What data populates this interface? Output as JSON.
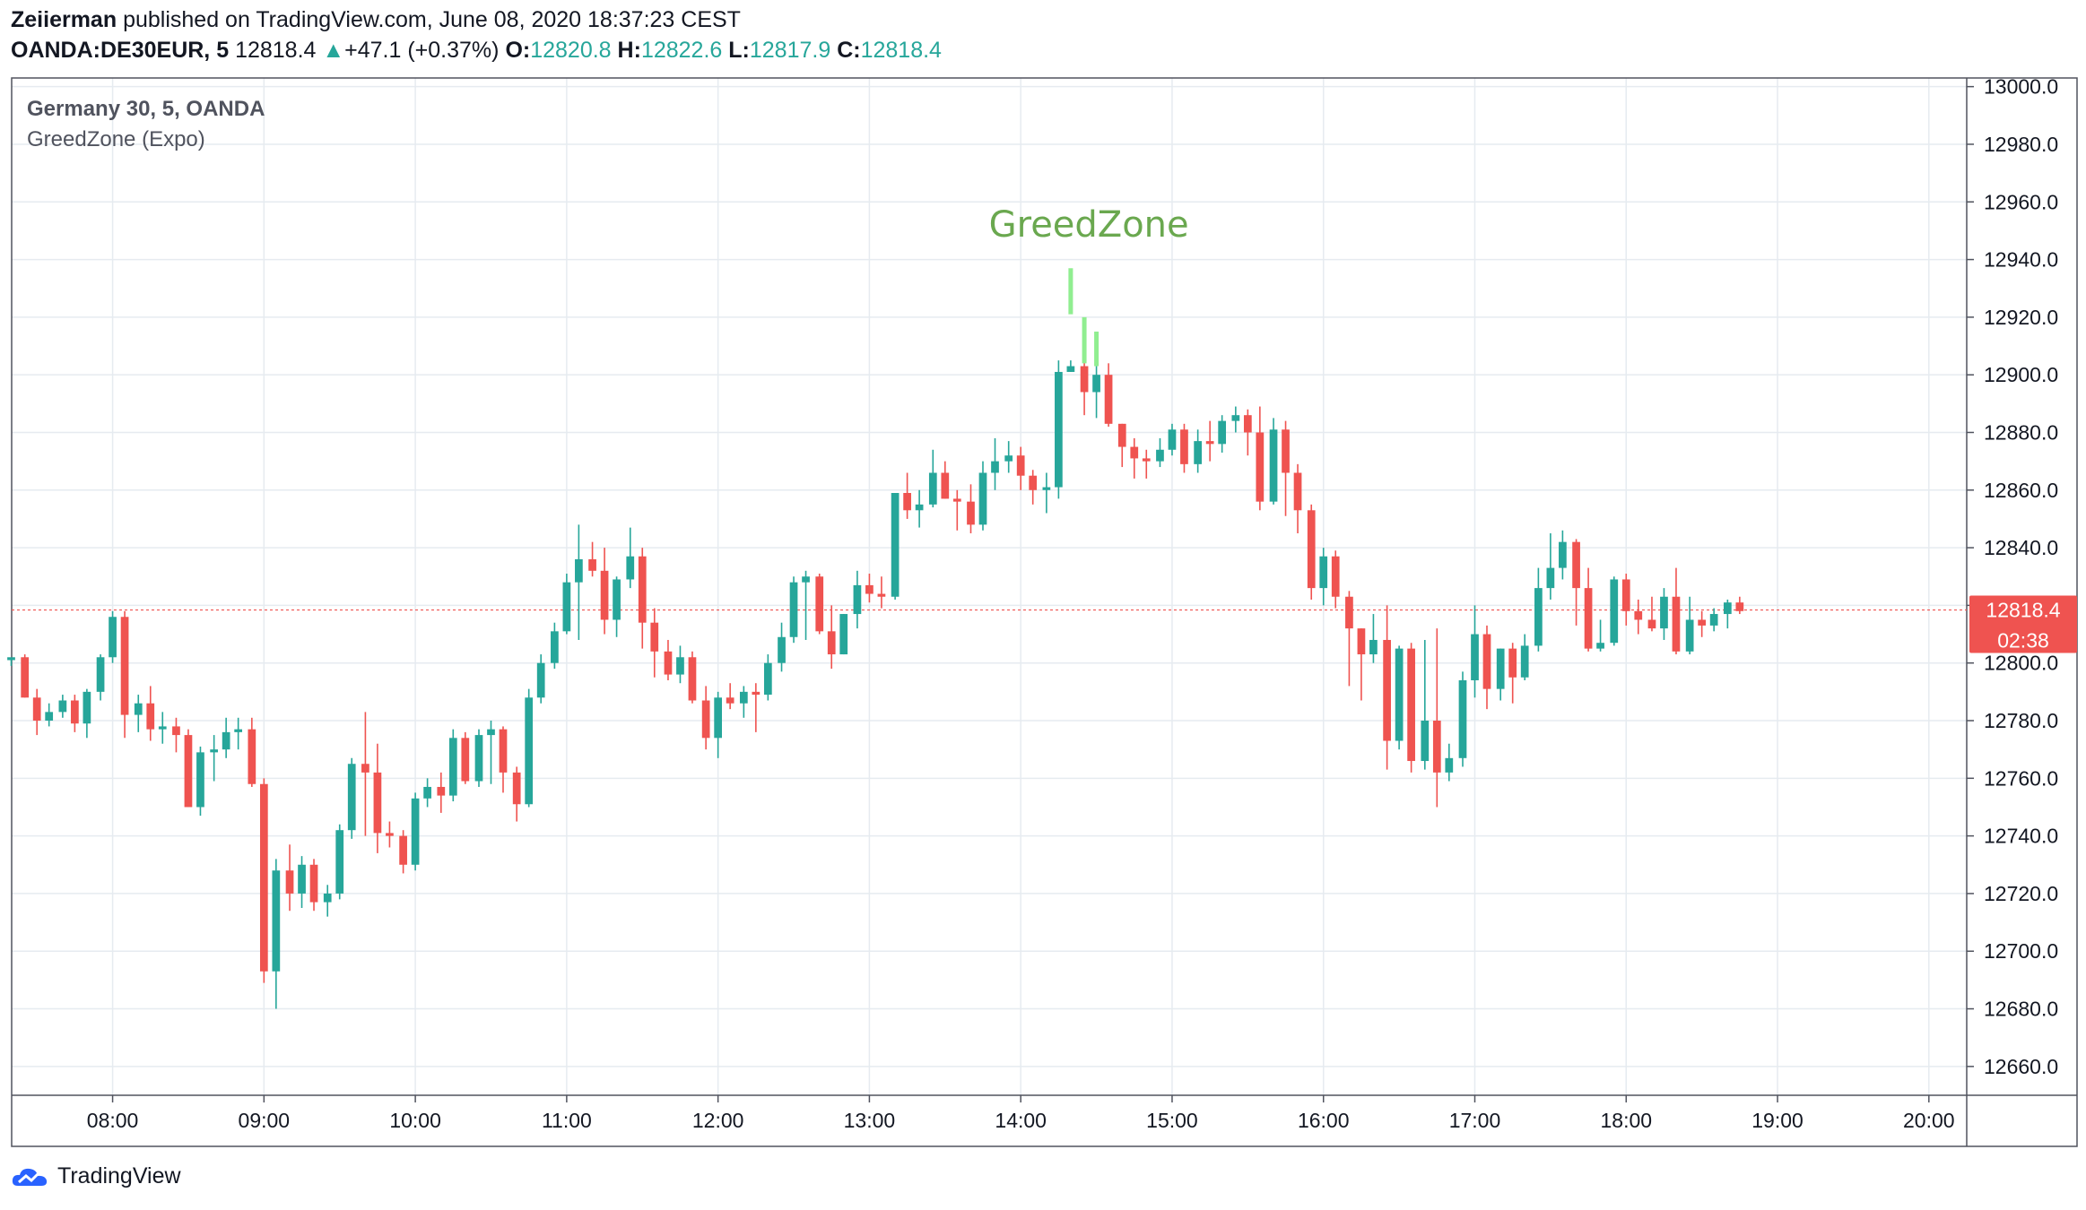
{
  "header": {
    "author": "Zeiierman",
    "published_text": "published on TradingView.com, June 08, 2020 18:37:23 CEST",
    "symbol": "OANDA:DE30EUR, 5",
    "last": "12818.4",
    "change": "+47.1 (+0.37%)",
    "o_label": "O:",
    "o_value": "12820.8",
    "h_label": "H:",
    "h_value": "12822.6",
    "l_label": "L:",
    "l_value": "12817.9",
    "c_label": "C:",
    "c_value": "12818.4"
  },
  "legend": {
    "title": "Germany 30, 5, OANDA",
    "indicator": "GreedZone (Expo)"
  },
  "annotation": {
    "text": "GreedZone",
    "color": "#6aa84f"
  },
  "price_label": {
    "value": "12818.4",
    "countdown": "02:38"
  },
  "footer": {
    "brand": "TradingView"
  },
  "colors": {
    "up": "#26a69a",
    "down": "#ef5350",
    "greed": "#90ee90",
    "grid": "#e6ebf0"
  },
  "chart_data": {
    "type": "candlestick",
    "ylim": [
      12650,
      13003
    ],
    "y_ticks": [
      12660,
      12680,
      12700,
      12720,
      12740,
      12760,
      12780,
      12800,
      12820,
      12840,
      12860,
      12880,
      12900,
      12920,
      12940,
      12960,
      12980,
      13000
    ],
    "x_ticks": [
      "08:00",
      "09:00",
      "10:00",
      "11:00",
      "12:00",
      "13:00",
      "14:00",
      "15:00",
      "16:00",
      "17:00",
      "18:00",
      "19:00",
      "20:00"
    ],
    "x_range_hours": [
      7.333,
      20.25
    ],
    "last_price": 12818.4,
    "candles": [
      [
        7.33,
        12801,
        12801,
        12799,
        12802
      ],
      [
        7.42,
        12802,
        12803,
        12788,
        12788
      ],
      [
        7.5,
        12788,
        12791,
        12775,
        12780
      ],
      [
        7.58,
        12780,
        12786,
        12778,
        12783
      ],
      [
        7.67,
        12783,
        12789,
        12781,
        12787
      ],
      [
        7.75,
        12787,
        12789,
        12776,
        12779
      ],
      [
        7.83,
        12779,
        12791,
        12774,
        12790
      ],
      [
        7.92,
        12790,
        12803,
        12787,
        12802
      ],
      [
        8.0,
        12802,
        12818,
        12800,
        12816
      ],
      [
        8.08,
        12816,
        12818,
        12774,
        12782
      ],
      [
        8.17,
        12782,
        12789,
        12776,
        12786
      ],
      [
        8.25,
        12786,
        12792,
        12773,
        12777
      ],
      [
        8.33,
        12777,
        12783,
        12772,
        12778
      ],
      [
        8.42,
        12778,
        12781,
        12769,
        12775
      ],
      [
        8.5,
        12775,
        12777,
        12750,
        12750
      ],
      [
        8.58,
        12750,
        12771,
        12747,
        12769
      ],
      [
        8.67,
        12769,
        12775,
        12759,
        12770
      ],
      [
        8.75,
        12770,
        12781,
        12767,
        12776
      ],
      [
        8.83,
        12776,
        12781,
        12770,
        12777
      ],
      [
        8.92,
        12777,
        12781,
        12757,
        12758
      ],
      [
        9.0,
        12758,
        12760,
        12689,
        12693
      ],
      [
        9.08,
        12693,
        12732,
        12680,
        12728
      ],
      [
        9.17,
        12728,
        12737,
        12714,
        12720
      ],
      [
        9.25,
        12720,
        12733,
        12715,
        12730
      ],
      [
        9.33,
        12730,
        12732,
        12714,
        12717
      ],
      [
        9.42,
        12717,
        12723,
        12712,
        12720
      ],
      [
        9.5,
        12720,
        12744,
        12718,
        12742
      ],
      [
        9.58,
        12742,
        12767,
        12739,
        12765
      ],
      [
        9.67,
        12765,
        12783,
        12740,
        12762
      ],
      [
        9.75,
        12762,
        12772,
        12734,
        12741
      ],
      [
        9.83,
        12741,
        12745,
        12736,
        12740
      ],
      [
        9.92,
        12740,
        12742,
        12727,
        12730
      ],
      [
        10.0,
        12730,
        12755,
        12728,
        12753
      ],
      [
        10.08,
        12753,
        12760,
        12750,
        12757
      ],
      [
        10.17,
        12757,
        12762,
        12748,
        12754
      ],
      [
        10.25,
        12754,
        12777,
        12752,
        12774
      ],
      [
        10.33,
        12774,
        12776,
        12758,
        12759
      ],
      [
        10.42,
        12759,
        12777,
        12757,
        12775
      ],
      [
        10.5,
        12775,
        12780,
        12758,
        12777
      ],
      [
        10.58,
        12777,
        12778,
        12755,
        12762
      ],
      [
        10.67,
        12762,
        12764,
        12745,
        12751
      ],
      [
        10.75,
        12751,
        12791,
        12750,
        12788
      ],
      [
        10.83,
        12788,
        12803,
        12786,
        12800
      ],
      [
        10.92,
        12800,
        12814,
        12798,
        12811
      ],
      [
        11.0,
        12811,
        12831,
        12810,
        12828
      ],
      [
        11.08,
        12828,
        12848,
        12808,
        12836
      ],
      [
        11.17,
        12836,
        12842,
        12830,
        12832
      ],
      [
        11.25,
        12832,
        12840,
        12810,
        12815
      ],
      [
        11.33,
        12815,
        12830,
        12809,
        12829
      ],
      [
        11.42,
        12829,
        12847,
        12826,
        12837
      ],
      [
        11.5,
        12837,
        12840,
        12805,
        12814
      ],
      [
        11.58,
        12814,
        12819,
        12795,
        12804
      ],
      [
        11.67,
        12804,
        12808,
        12794,
        12796
      ],
      [
        11.75,
        12796,
        12806,
        12793,
        12802
      ],
      [
        11.83,
        12802,
        12804,
        12786,
        12787
      ],
      [
        11.92,
        12787,
        12792,
        12770,
        12774
      ],
      [
        12.0,
        12774,
        12790,
        12767,
        12788
      ],
      [
        12.08,
        12788,
        12793,
        12784,
        12786
      ],
      [
        12.17,
        12786,
        12792,
        12781,
        12790
      ],
      [
        12.25,
        12790,
        12793,
        12776,
        12789
      ],
      [
        12.33,
        12789,
        12803,
        12787,
        12800
      ],
      [
        12.42,
        12800,
        12814,
        12797,
        12809
      ],
      [
        12.5,
        12809,
        12830,
        12807,
        12828
      ],
      [
        12.58,
        12828,
        12832,
        12808,
        12830
      ],
      [
        12.67,
        12830,
        12831,
        12810,
        12811
      ],
      [
        12.75,
        12811,
        12820,
        12798,
        12803
      ],
      [
        12.83,
        12803,
        12817,
        12803,
        12817
      ],
      [
        12.92,
        12817,
        12832,
        12812,
        12827
      ],
      [
        13.0,
        12827,
        12831,
        12821,
        12824
      ],
      [
        13.08,
        12824,
        12830,
        12819,
        12823
      ],
      [
        13.17,
        12823,
        12858,
        12822,
        12859
      ],
      [
        13.25,
        12859,
        12866,
        12850,
        12853
      ],
      [
        13.33,
        12853,
        12860,
        12847,
        12855
      ],
      [
        13.42,
        12855,
        12874,
        12854,
        12866
      ],
      [
        13.5,
        12866,
        12870,
        12857,
        12857
      ],
      [
        13.58,
        12857,
        12860,
        12846,
        12856
      ],
      [
        13.67,
        12856,
        12862,
        12845,
        12848
      ],
      [
        13.75,
        12848,
        12870,
        12846,
        12866
      ],
      [
        13.83,
        12866,
        12878,
        12860,
        12870
      ],
      [
        13.92,
        12870,
        12877,
        12866,
        12872
      ],
      [
        14.0,
        12872,
        12875,
        12860,
        12865
      ],
      [
        14.08,
        12865,
        12867,
        12855,
        12860
      ],
      [
        14.17,
        12860,
        12866,
        12852,
        12861
      ],
      [
        14.25,
        12861,
        12905,
        12857,
        12901
      ],
      [
        14.33,
        12901,
        12905,
        12901,
        12903
      ],
      [
        14.42,
        12903,
        12905,
        12886,
        12894
      ],
      [
        14.5,
        12894,
        12903,
        12885,
        12900
      ],
      [
        14.58,
        12900,
        12904,
        12882,
        12883
      ],
      [
        14.67,
        12883,
        12883,
        12868,
        12875
      ],
      [
        14.75,
        12875,
        12878,
        12864,
        12871
      ],
      [
        14.83,
        12871,
        12874,
        12864,
        12870
      ],
      [
        14.92,
        12870,
        12878,
        12868,
        12874
      ],
      [
        15.0,
        12874,
        12883,
        12872,
        12881
      ],
      [
        15.08,
        12881,
        12883,
        12866,
        12869
      ],
      [
        15.17,
        12869,
        12881,
        12866,
        12877
      ],
      [
        15.25,
        12877,
        12884,
        12870,
        12876
      ],
      [
        15.33,
        12876,
        12886,
        12873,
        12884
      ],
      [
        15.42,
        12884,
        12889,
        12880,
        12886
      ],
      [
        15.5,
        12886,
        12888,
        12872,
        12880
      ],
      [
        15.58,
        12880,
        12889,
        12853,
        12856
      ],
      [
        15.67,
        12856,
        12885,
        12855,
        12881
      ],
      [
        15.75,
        12881,
        12884,
        12851,
        12866
      ],
      [
        15.83,
        12866,
        12869,
        12845,
        12853
      ],
      [
        15.92,
        12853,
        12855,
        12822,
        12826
      ],
      [
        16.0,
        12826,
        12840,
        12820,
        12837
      ],
      [
        16.08,
        12837,
        12839,
        12819,
        12823
      ],
      [
        16.17,
        12823,
        12825,
        12792,
        12812
      ],
      [
        16.25,
        12812,
        12812,
        12787,
        12803
      ],
      [
        16.33,
        12803,
        12817,
        12800,
        12808
      ],
      [
        16.42,
        12808,
        12820,
        12763,
        12773
      ],
      [
        16.5,
        12773,
        12806,
        12770,
        12805
      ],
      [
        16.58,
        12805,
        12807,
        12762,
        12766
      ],
      [
        16.67,
        12766,
        12808,
        12763,
        12780
      ],
      [
        16.75,
        12780,
        12812,
        12750,
        12762
      ],
      [
        16.83,
        12762,
        12772,
        12759,
        12767
      ],
      [
        16.92,
        12767,
        12797,
        12764,
        12794
      ],
      [
        17.0,
        12794,
        12820,
        12788,
        12810
      ],
      [
        17.08,
        12810,
        12813,
        12784,
        12791
      ],
      [
        17.17,
        12791,
        12805,
        12787,
        12805
      ],
      [
        17.25,
        12805,
        12807,
        12786,
        12795
      ],
      [
        17.33,
        12795,
        12810,
        12794,
        12806
      ],
      [
        17.42,
        12806,
        12833,
        12804,
        12826
      ],
      [
        17.5,
        12826,
        12845,
        12822,
        12833
      ],
      [
        17.58,
        12833,
        12846,
        12829,
        12842
      ],
      [
        17.67,
        12842,
        12843,
        12813,
        12826
      ],
      [
        17.75,
        12826,
        12833,
        12804,
        12805
      ],
      [
        17.83,
        12805,
        12815,
        12804,
        12807
      ],
      [
        17.92,
        12807,
        12830,
        12806,
        12829
      ],
      [
        18.0,
        12829,
        12831,
        12813,
        12818
      ],
      [
        18.08,
        12818,
        12822,
        12810,
        12815
      ],
      [
        18.17,
        12815,
        12823,
        12811,
        12812
      ],
      [
        18.25,
        12812,
        12826,
        12808,
        12823
      ],
      [
        18.33,
        12823,
        12833,
        12803,
        12804
      ],
      [
        18.42,
        12804,
        12823,
        12803,
        12815
      ],
      [
        18.5,
        12815,
        12818,
        12809,
        12813
      ],
      [
        18.58,
        12813,
        12819,
        12811,
        12817
      ],
      [
        18.67,
        12817,
        12822,
        12812,
        12821
      ],
      [
        18.75,
        12821,
        12823,
        12817,
        12818
      ]
    ],
    "greedzone_bars": [
      {
        "x": 14.33,
        "from": 12921,
        "to": 12937
      },
      {
        "x": 14.42,
        "from": 12904,
        "to": 12920
      },
      {
        "x": 14.5,
        "from": 12903,
        "to": 12915
      }
    ]
  }
}
